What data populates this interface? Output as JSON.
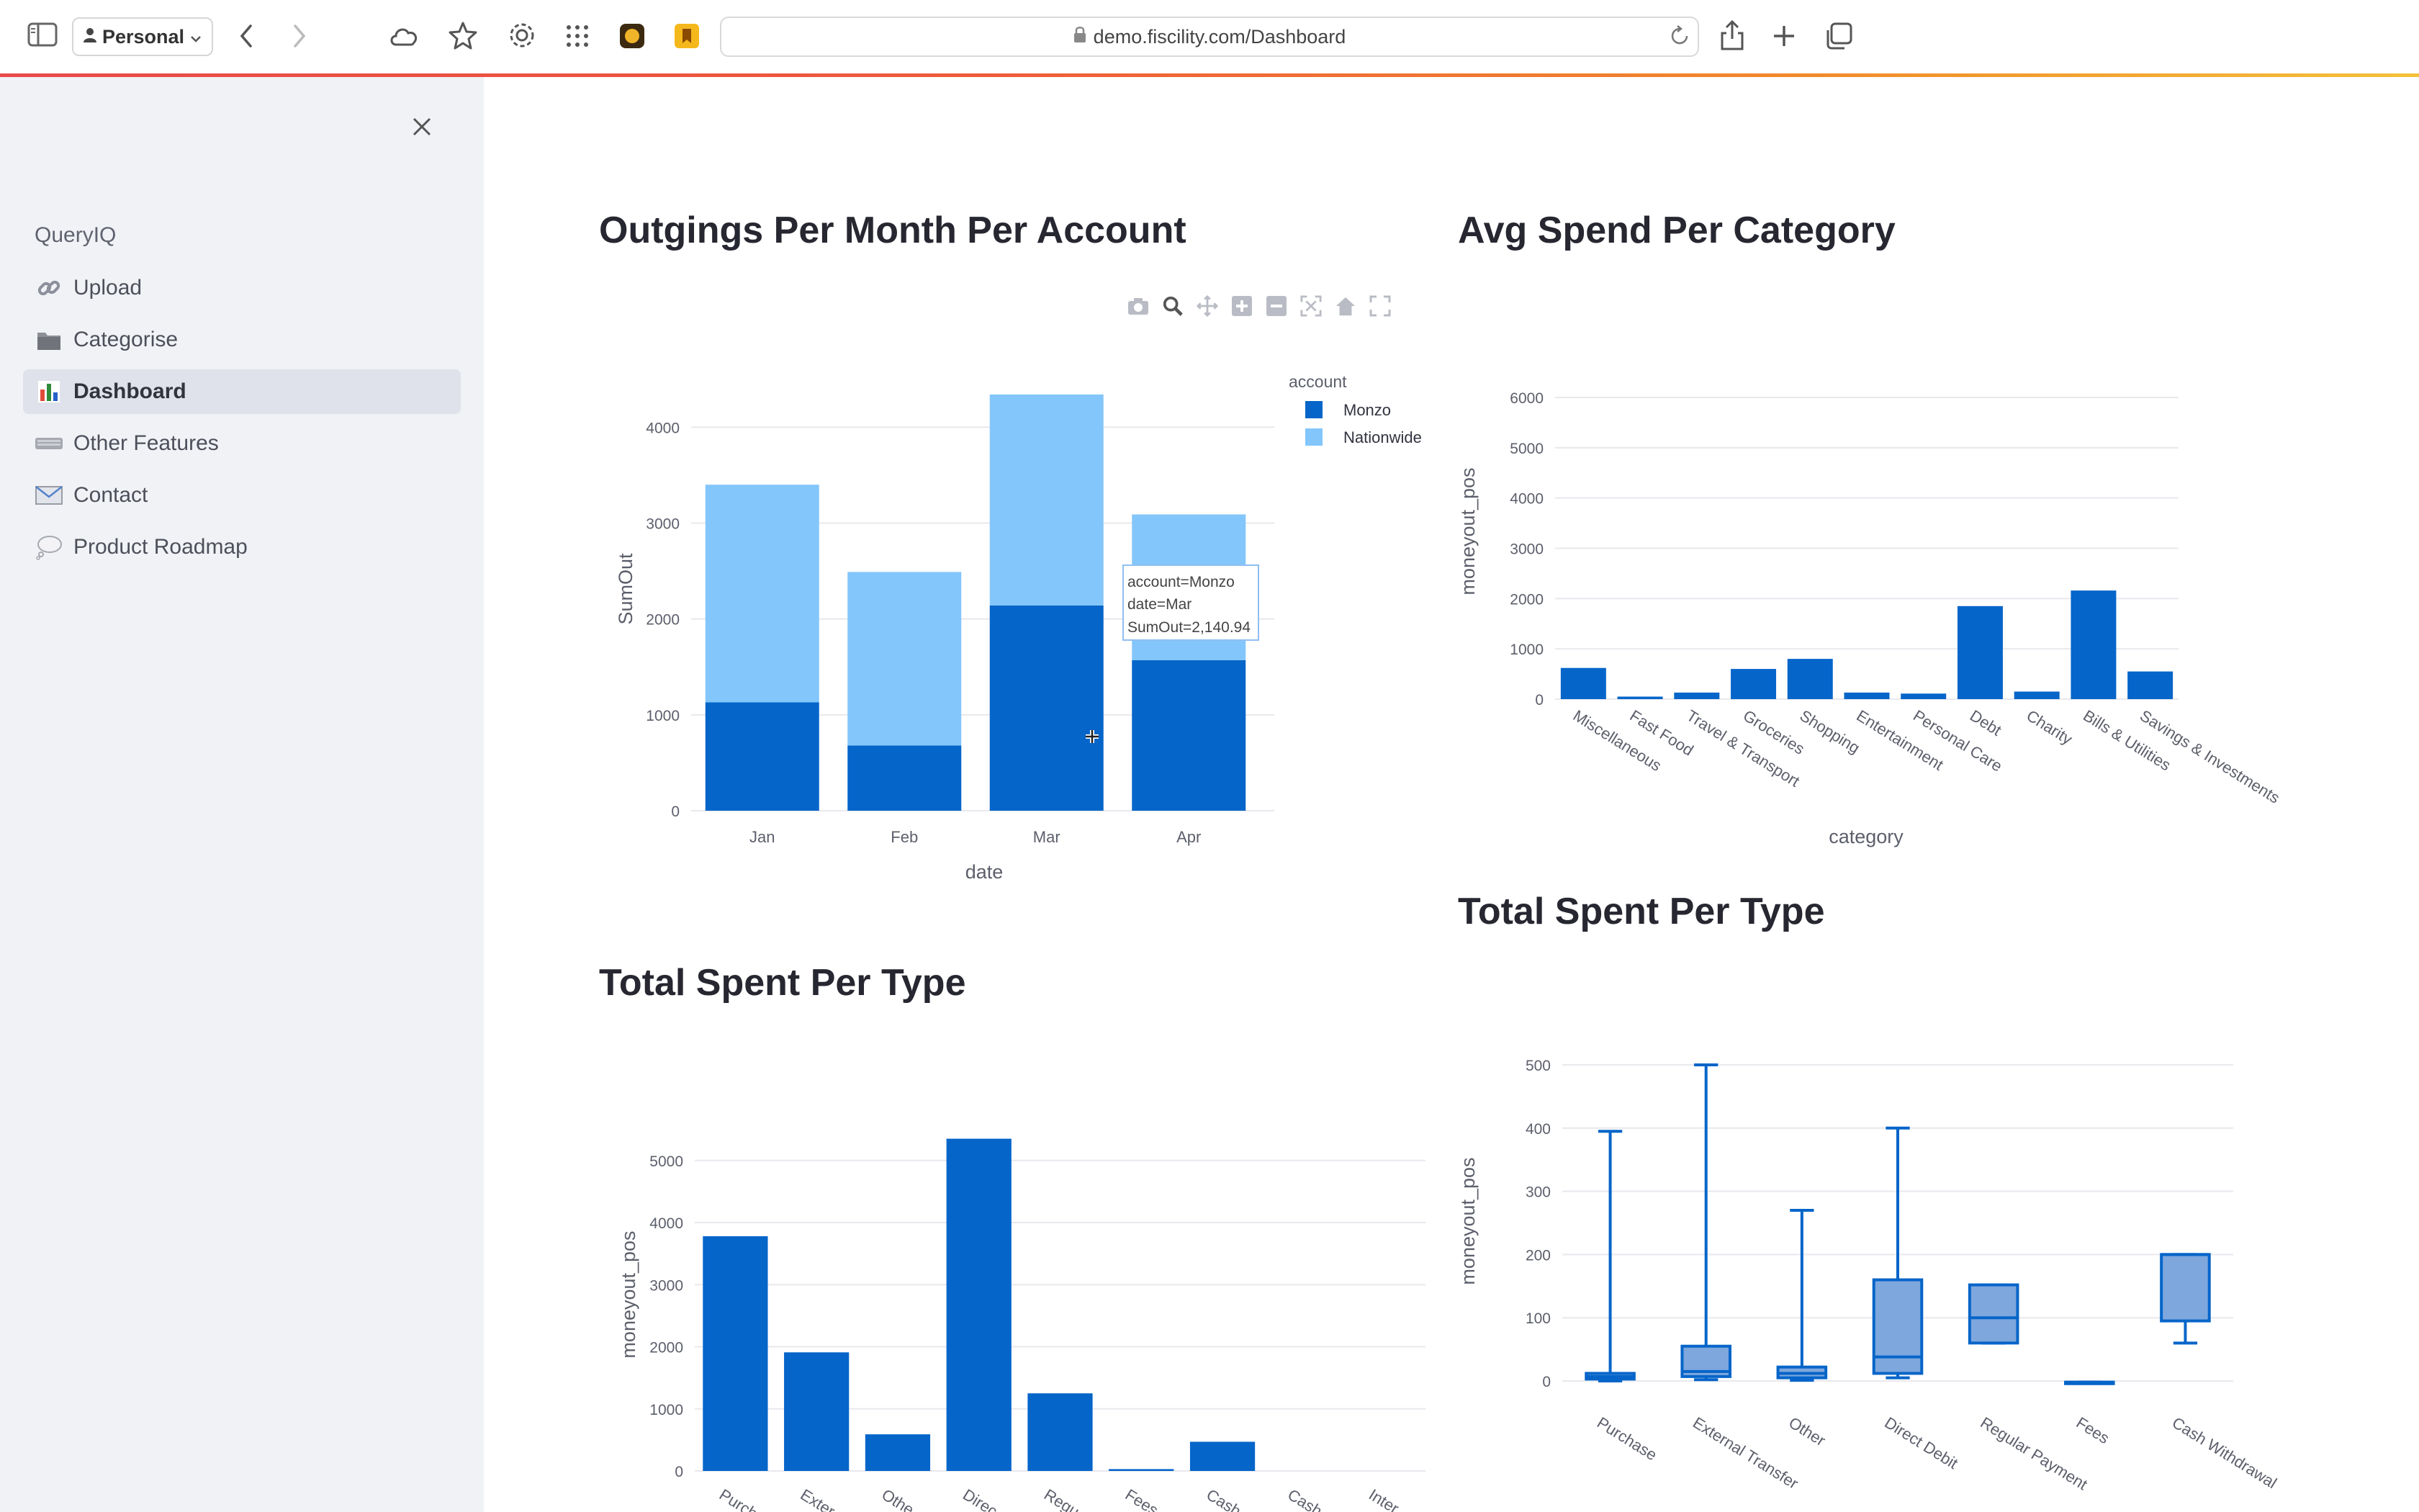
{
  "browser": {
    "profile_label": "Personal",
    "url": "demo.fiscility.com/Dashboard",
    "icons": [
      "sidebar-toggle-icon",
      "person-icon",
      "chevron-down-icon",
      "back-icon",
      "forward-icon",
      "cloud-icon",
      "star-icon",
      "gear-icon",
      "grid-icon",
      "extension-icon",
      "bookmark-icon",
      "lock-icon",
      "reload-icon",
      "share-icon",
      "plus-icon",
      "tabs-icon"
    ]
  },
  "sidebar": {
    "app_name": "QueryIQ",
    "items": [
      {
        "label": "Upload",
        "icon": "link-icon",
        "active": false
      },
      {
        "label": "Categorise",
        "icon": "folder-icon",
        "active": false
      },
      {
        "label": "Dashboard",
        "icon": "bar-chart-icon",
        "active": true
      },
      {
        "label": "Other Features",
        "icon": "keyboard-icon",
        "active": false
      },
      {
        "label": "Contact",
        "icon": "envelope-icon",
        "active": false
      },
      {
        "label": "Product Roadmap",
        "icon": "thought-bubble-icon",
        "active": false
      }
    ]
  },
  "main": {
    "titles": {
      "outgings": "Outgings Per Month Per Account",
      "avg_spend": "Avg Spend Per Category",
      "total_left": "Total Spent Per Type",
      "total_right": "Total Spent Per Type"
    },
    "modebar_icons": [
      "camera-icon",
      "zoom-icon",
      "pan-icon",
      "zoom-in-icon",
      "zoom-out-icon",
      "autoscale-icon",
      "home-icon",
      "fullscreen-icon"
    ],
    "tooltip": {
      "line1": "account=Monzo",
      "line2": "date=Mar",
      "line3": "SumOut=2,140.94"
    }
  },
  "colors": {
    "monzo": "#0565c9",
    "nationwide": "#83c6fb",
    "box_fill": "#7ea7dd",
    "grid": "#e8e8ee",
    "tick": "#5c5f6b"
  },
  "chart_data": [
    {
      "id": "outgings",
      "type": "bar",
      "stacked": true,
      "categories": [
        "Jan",
        "Feb",
        "Mar",
        "Apr"
      ],
      "series": [
        {
          "name": "Monzo",
          "values": [
            1130,
            680,
            2140.94,
            1570
          ]
        },
        {
          "name": "Nationwide",
          "values": [
            2270,
            1810,
            2200,
            1520
          ]
        }
      ],
      "xlabel": "date",
      "ylabel": "SumOut",
      "ylim": [
        0,
        4400
      ],
      "yticks": [
        0,
        1000,
        2000,
        3000,
        4000
      ],
      "legend_title": "account",
      "legend_position": "top-right",
      "grid": true
    },
    {
      "id": "avg_spend",
      "type": "bar",
      "categories": [
        "Miscellaneous",
        "Fast Food",
        "Travel & Transport",
        "Groceries",
        "Shopping",
        "Entertainment",
        "Personal Care",
        "Debt",
        "Charity",
        "Bills & Utilities",
        "Savings & Investments"
      ],
      "values": [
        620,
        50,
        130,
        600,
        800,
        130,
        110,
        1850,
        150,
        2160,
        550
      ],
      "xlabel": "category",
      "ylabel": "moneyout_pos",
      "ylim": [
        0,
        6000
      ],
      "yticks": [
        0,
        1000,
        2000,
        3000,
        4000,
        5000,
        6000
      ],
      "grid": true
    },
    {
      "id": "total_left",
      "type": "bar",
      "categories": [
        "Purch",
        "Exter",
        "Othe",
        "Direc",
        "Regu",
        "Fees",
        "Cash",
        "Cash",
        "Inter"
      ],
      "values": [
        3780,
        1910,
        590,
        5350,
        1250,
        30,
        470,
        0,
        0
      ],
      "xlabel": "",
      "ylabel": "moneyout_pos",
      "ylim": [
        0,
        5600
      ],
      "yticks": [
        0,
        1000,
        2000,
        3000,
        4000,
        5000
      ],
      "grid": true
    },
    {
      "id": "total_right",
      "type": "box",
      "categories": [
        "Purchase",
        "External Transfer",
        "Other",
        "Direct Debit",
        "Regular Payment",
        "Fees",
        "Cash Withdrawal"
      ],
      "boxes": [
        {
          "min": 0,
          "q1": 3,
          "median": 7,
          "q3": 12,
          "max": 395
        },
        {
          "min": 2,
          "q1": 7,
          "median": 15,
          "q3": 55,
          "max": 500
        },
        {
          "min": 1,
          "q1": 5,
          "median": 12,
          "q3": 22,
          "max": 270
        },
        {
          "min": 5,
          "q1": 12,
          "median": 38,
          "q3": 160,
          "max": 400
        },
        {
          "min": 60,
          "q1": 60,
          "median": 100,
          "q3": 152,
          "max": 152
        },
        {
          "min": -2,
          "q1": -2,
          "median": -2,
          "q3": -2,
          "max": -2
        },
        {
          "min": 60,
          "q1": 95,
          "median": 200,
          "q3": 200,
          "max": 200
        }
      ],
      "xlabel": "",
      "ylabel": "moneyout_pos",
      "ylim": [
        -10,
        510
      ],
      "yticks": [
        0,
        100,
        200,
        300,
        400,
        500
      ],
      "grid": true
    }
  ]
}
